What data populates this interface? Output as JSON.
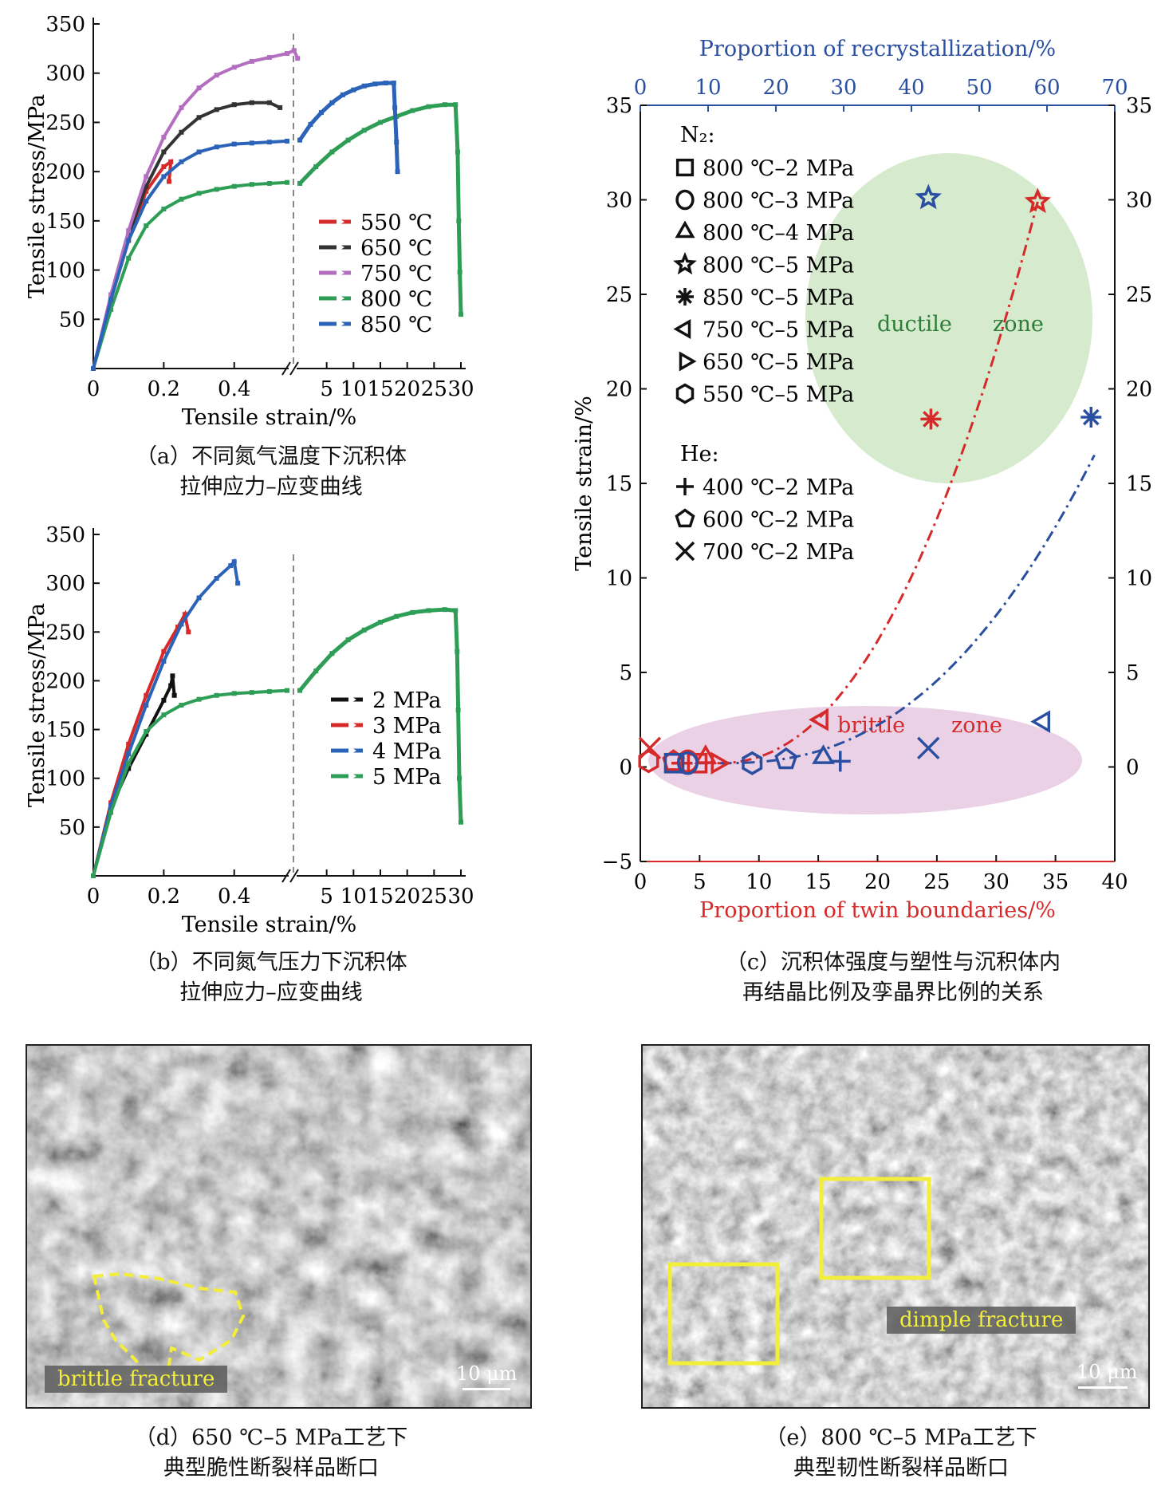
{
  "panel_a": {
    "caption": [
      "（a）不同氮气温度下沉积体",
      "拉伸应力–应变曲线"
    ],
    "chart_data": {
      "type": "line",
      "ylabel": "Tensile stress/MPa",
      "xlabel": "Tensile strain/%",
      "yticks": [
        "50",
        "100",
        "150",
        "200",
        "250",
        "300",
        "350"
      ],
      "ylim": [
        0,
        350
      ],
      "xticks_left": [
        "0",
        "0.2",
        "0.4"
      ],
      "xticks_right": [
        "5",
        "10",
        "15",
        "20",
        "25",
        "30"
      ],
      "axis_break": true,
      "series": [
        {
          "name": "550 ℃",
          "color": "#d62a2a",
          "left": [
            [
              0,
              0
            ],
            [
              0.05,
              70
            ],
            [
              0.1,
              130
            ],
            [
              0.15,
              180
            ],
            [
              0.2,
              205
            ],
            [
              0.22,
              210
            ],
            [
              0.215,
              190
            ]
          ],
          "right": []
        },
        {
          "name": "650 ℃",
          "color": "#333333",
          "left": [
            [
              0,
              0
            ],
            [
              0.05,
              72
            ],
            [
              0.1,
              135
            ],
            [
              0.15,
              185
            ],
            [
              0.2,
              220
            ],
            [
              0.25,
              240
            ],
            [
              0.3,
              255
            ],
            [
              0.35,
              263
            ],
            [
              0.4,
              268
            ],
            [
              0.45,
              270
            ],
            [
              0.5,
              270
            ],
            [
              0.53,
              265
            ]
          ],
          "right": []
        },
        {
          "name": "750 ℃",
          "color": "#b36ebf",
          "left": [
            [
              0,
              0
            ],
            [
              0.05,
              75
            ],
            [
              0.1,
              140
            ],
            [
              0.15,
              195
            ],
            [
              0.2,
              235
            ],
            [
              0.25,
              265
            ],
            [
              0.3,
              285
            ],
            [
              0.35,
              298
            ],
            [
              0.4,
              306
            ],
            [
              0.45,
              312
            ],
            [
              0.5,
              316
            ],
            [
              0.55,
              320
            ],
            [
              0.57,
              323
            ],
            [
              0.58,
              315
            ]
          ],
          "right": []
        },
        {
          "name": "800 ℃",
          "color": "#2e9e57",
          "left": [
            [
              0,
              0
            ],
            [
              0.05,
              60
            ],
            [
              0.1,
              112
            ],
            [
              0.15,
              145
            ],
            [
              0.2,
              162
            ],
            [
              0.25,
              172
            ],
            [
              0.3,
              178
            ],
            [
              0.35,
              182
            ],
            [
              0.4,
              185
            ],
            [
              0.45,
              187
            ],
            [
              0.5,
              188
            ],
            [
              0.55,
              189
            ]
          ],
          "right": [
            [
              0,
              188
            ],
            [
              3,
              205
            ],
            [
              6,
              220
            ],
            [
              9,
              232
            ],
            [
              12,
              242
            ],
            [
              15,
              250
            ],
            [
              18,
              256
            ],
            [
              21,
              262
            ],
            [
              24,
              266
            ],
            [
              27,
              268
            ],
            [
              29,
              268
            ],
            [
              29.4,
              220
            ],
            [
              29.6,
              150
            ],
            [
              29.8,
              98
            ],
            [
              30,
              55
            ]
          ]
        },
        {
          "name": "850 ℃",
          "color": "#2a63b8",
          "left": [
            [
              0,
              0
            ],
            [
              0.05,
              70
            ],
            [
              0.1,
              130
            ],
            [
              0.15,
              170
            ],
            [
              0.2,
              195
            ],
            [
              0.25,
              210
            ],
            [
              0.3,
              220
            ],
            [
              0.35,
              225
            ],
            [
              0.4,
              228
            ],
            [
              0.45,
              229
            ],
            [
              0.5,
              230
            ],
            [
              0.55,
              231
            ]
          ],
          "right": [
            [
              0,
              232
            ],
            [
              2,
              248
            ],
            [
              4,
              260
            ],
            [
              6,
              270
            ],
            [
              8,
              278
            ],
            [
              10,
              283
            ],
            [
              12,
              287
            ],
            [
              14,
              289
            ],
            [
              16,
              290
            ],
            [
              17.5,
              290
            ],
            [
              17.7,
              265
            ],
            [
              18,
              230
            ],
            [
              18.2,
              200
            ]
          ]
        }
      ]
    }
  },
  "panel_b": {
    "caption": [
      "（b）不同氮气压力下沉积体",
      "拉伸应力–应变曲线"
    ],
    "chart_data": {
      "type": "line",
      "ylabel": "Tensile stress/MPa",
      "xlabel": "Tensile strain/%",
      "yticks": [
        "50",
        "100",
        "150",
        "200",
        "250",
        "300",
        "350"
      ],
      "ylim": [
        0,
        350
      ],
      "xticks_left": [
        "0",
        "0.2",
        "0.4"
      ],
      "xticks_right": [
        "5",
        "10",
        "15",
        "20",
        "25",
        "30"
      ],
      "axis_break": true,
      "series": [
        {
          "name": "2 MPa",
          "color": "#111111",
          "left": [
            [
              0,
              0
            ],
            [
              0.05,
              70
            ],
            [
              0.1,
              110
            ],
            [
              0.15,
              145
            ],
            [
              0.2,
              180
            ],
            [
              0.22,
              195
            ],
            [
              0.225,
              205
            ],
            [
              0.23,
              185
            ]
          ],
          "right": []
        },
        {
          "name": "3 MPa",
          "color": "#d62a2a",
          "left": [
            [
              0,
              0
            ],
            [
              0.05,
              75
            ],
            [
              0.1,
              135
            ],
            [
              0.15,
              185
            ],
            [
              0.2,
              230
            ],
            [
              0.24,
              255
            ],
            [
              0.26,
              268
            ],
            [
              0.27,
              250
            ]
          ],
          "right": []
        },
        {
          "name": "4 MPa",
          "color": "#2a63b8",
          "left": [
            [
              0,
              0
            ],
            [
              0.05,
              72
            ],
            [
              0.1,
              125
            ],
            [
              0.15,
              175
            ],
            [
              0.2,
              220
            ],
            [
              0.25,
              258
            ],
            [
              0.3,
              285
            ],
            [
              0.35,
              305
            ],
            [
              0.39,
              318
            ],
            [
              0.4,
              322
            ],
            [
              0.41,
              300
            ]
          ],
          "right": []
        },
        {
          "name": "5 MPa",
          "color": "#2e9e57",
          "left": [
            [
              0,
              0
            ],
            [
              0.05,
              65
            ],
            [
              0.1,
              115
            ],
            [
              0.15,
              148
            ],
            [
              0.2,
              165
            ],
            [
              0.25,
              175
            ],
            [
              0.3,
              181
            ],
            [
              0.35,
              185
            ],
            [
              0.4,
              187
            ],
            [
              0.45,
              188
            ],
            [
              0.5,
              189
            ],
            [
              0.55,
              190
            ]
          ],
          "right": [
            [
              0,
              190
            ],
            [
              3,
              210
            ],
            [
              6,
              228
            ],
            [
              9,
              242
            ],
            [
              12,
              252
            ],
            [
              15,
              260
            ],
            [
              18,
              266
            ],
            [
              21,
              270
            ],
            [
              24,
              272
            ],
            [
              27,
              273
            ],
            [
              29,
              272
            ],
            [
              29.3,
              230
            ],
            [
              29.5,
              170
            ],
            [
              29.7,
              100
            ],
            [
              30,
              55
            ]
          ]
        }
      ]
    }
  },
  "panel_c": {
    "caption": [
      "（c）沉积体强度与塑性与沉积体内",
      "再结晶比例及孪晶界比例的关系"
    ],
    "chart_data": {
      "type": "scatter",
      "xlabel_bottom": "Proportion of twin boundaries/%",
      "xlabel_top": "Proportion of recrystallization/%",
      "ylabel_left": "Tensile strain/%",
      "xlim_bottom": [
        0,
        40
      ],
      "xlim_top": [
        0,
        70
      ],
      "ylim_left": [
        -5,
        35
      ],
      "ylim_right": [
        -5,
        35
      ],
      "xticks_bottom": [
        "0",
        "5",
        "10",
        "15",
        "20",
        "25",
        "30",
        "35",
        "40"
      ],
      "xticks_top": [
        "0",
        "10",
        "20",
        "30",
        "40",
        "50",
        "60",
        "70"
      ],
      "yticks_left": [
        "−5",
        "0",
        "5",
        "10",
        "15",
        "20",
        "25",
        "30",
        "35"
      ],
      "yticks_right": [
        "0",
        "5",
        "10",
        "15",
        "20",
        "25",
        "30",
        "35"
      ],
      "legend_groups": [
        {
          "title": "N₂:",
          "items": [
            {
              "marker": "square",
              "label": "800 ℃–2 MPa"
            },
            {
              "marker": "circle",
              "label": "800 ℃–3 MPa"
            },
            {
              "marker": "triangle-up",
              "label": "800 ℃–4 MPa"
            },
            {
              "marker": "star",
              "label": "800 ℃–5 MPa"
            },
            {
              "marker": "asterisk",
              "label": "850 ℃–5 MPa"
            },
            {
              "marker": "triangle-left",
              "label": "750 ℃–5 MPa"
            },
            {
              "marker": "triangle-right",
              "label": "650 ℃–5 MPa"
            },
            {
              "marker": "hexagon",
              "label": "550 ℃–5 MPa"
            }
          ]
        },
        {
          "title": "He:",
          "items": [
            {
              "marker": "plus",
              "label": "400 ℃–2 MPa"
            },
            {
              "marker": "pentagon",
              "label": "600 ℃–2 MPa"
            },
            {
              "marker": "x",
              "label": "700 ℃–2 MPa"
            }
          ]
        }
      ],
      "zones": [
        {
          "name_left": "ductile",
          "name_right": "zone",
          "color": "#cfe6c4"
        },
        {
          "name_left": "brittle",
          "name_right": "zone",
          "color": "#e6c9e0"
        }
      ],
      "twin_series": {
        "color": "#d62a2a",
        "points": [
          {
            "marker": "x",
            "x": 0.8,
            "y": 1.0
          },
          {
            "marker": "hexagon",
            "x": 0.7,
            "y": 0.3
          },
          {
            "marker": "pentagon",
            "x": 2.8,
            "y": 0.3
          },
          {
            "marker": "plus",
            "x": 3.5,
            "y": 0.2
          },
          {
            "marker": "circle",
            "x": 4.0,
            "y": 0.3
          },
          {
            "marker": "square",
            "x": 4.8,
            "y": 0.2
          },
          {
            "marker": "triangle-up",
            "x": 5.5,
            "y": 0.5
          },
          {
            "marker": "triangle-right",
            "x": 6.5,
            "y": 0.2
          },
          {
            "marker": "triangle-left",
            "x": 15.3,
            "y": 2.5
          },
          {
            "marker": "asterisk",
            "x": 24.5,
            "y": 18.4
          },
          {
            "marker": "star",
            "x": 33.5,
            "y": 29.9
          }
        ]
      },
      "recryst_series": {
        "color": "#2a4fa0",
        "points": [
          {
            "marker": "square",
            "x_top": 5.0,
            "y_right": 0.2
          },
          {
            "marker": "circle",
            "x_top": 7.0,
            "y_right": 0.2
          },
          {
            "marker": "hexagon",
            "x_top": 16.5,
            "y_right": 0.2
          },
          {
            "marker": "pentagon",
            "x_top": 21.5,
            "y_right": 0.4
          },
          {
            "marker": "triangle-up",
            "x_top": 27.0,
            "y_right": 0.5
          },
          {
            "marker": "plus",
            "x_top": 29.5,
            "y_right": 0.3
          },
          {
            "marker": "x",
            "x_top": 42.5,
            "y_right": 1.0
          },
          {
            "marker": "star",
            "x_top": 42.5,
            "y_right": 30.1
          },
          {
            "marker": "triangle-left",
            "x_top": 59.5,
            "y_right": 2.4
          },
          {
            "marker": "asterisk",
            "x_top": 66.5,
            "y_right": 18.5
          }
        ]
      }
    }
  },
  "panel_d": {
    "caption": [
      "（d）650 ℃–5 MPa工艺下",
      "典型脆性断裂样品断口"
    ],
    "label": "brittle fracture",
    "scale": "10 μm"
  },
  "panel_e": {
    "caption": [
      "（e）800 ℃–5 MPa工艺下",
      "典型韧性断裂样品断口"
    ],
    "label": "dimple fracture",
    "scale": "10 μm"
  }
}
